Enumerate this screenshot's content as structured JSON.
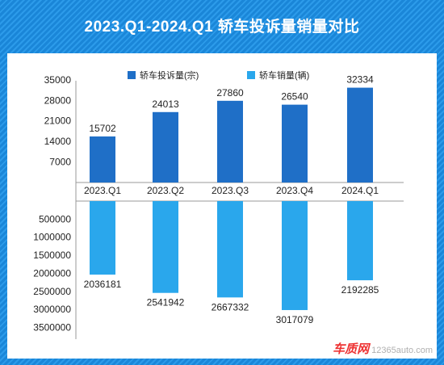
{
  "chart_data": {
    "type": "bar",
    "title": "2023.Q1-2024.Q1 轿车投诉量销量对比",
    "categories": [
      "2023.Q1",
      "2023.Q2",
      "2023.Q3",
      "2023.Q4",
      "2024.Q1"
    ],
    "series": [
      {
        "name": "轿车投诉量(宗)",
        "values": [
          15702,
          24013,
          27860,
          26540,
          32334
        ],
        "color": "#1f6fc7"
      },
      {
        "name": "轿车销量(辆)",
        "values": [
          2036181,
          2541942,
          2667332,
          3017079,
          2192285
        ],
        "color": "#2aa7ec"
      }
    ],
    "top_axis": {
      "ylim": [
        0,
        38000
      ],
      "ticks": [
        "35000",
        "28000",
        "21000",
        "14000",
        "7000"
      ]
    },
    "bottom_axis": {
      "ylim": [
        0,
        3800000
      ],
      "ticks": [
        "500000",
        "1000000",
        "1500000",
        "2000000",
        "2500000",
        "3000000",
        "3500000"
      ],
      "inverted": true
    },
    "legend": "top"
  },
  "watermark": {
    "brand": "车质网",
    "site": "12365auto.com"
  }
}
